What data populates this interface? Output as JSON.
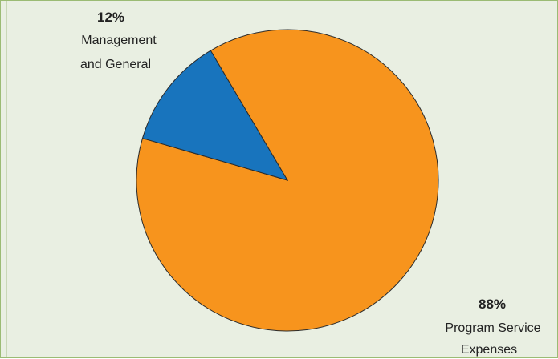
{
  "chart_data": {
    "type": "pie",
    "slices": [
      {
        "label": "Program Service Expenses",
        "percent_label": "88%",
        "value": 88,
        "color": "#f7941d"
      },
      {
        "label": "Management and General",
        "percent_label": "12%",
        "value": 12,
        "color": "#1874bd"
      }
    ]
  },
  "labels": {
    "management_pct": "12%",
    "management_line1": "Management",
    "management_line2": "and General",
    "program_pct": "88%",
    "program_line1": "Program Service",
    "program_line2": "Expenses"
  }
}
